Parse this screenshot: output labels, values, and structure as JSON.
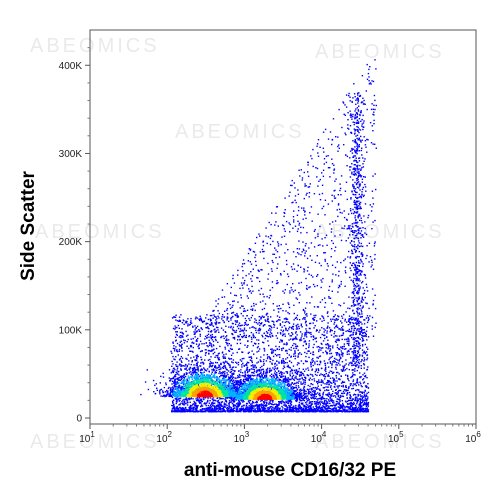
{
  "chart_data": {
    "type": "scatter",
    "subtype": "flow-cytometry-density-dot-plot",
    "title": "",
    "xlabel": "anti-mouse CD16/32 PE",
    "ylabel": "Side Scatter",
    "x_scale": "log",
    "xlim": [
      10,
      1000000
    ],
    "x_ticks": [
      {
        "value": 10,
        "base": "10",
        "exp": "1"
      },
      {
        "value": 100,
        "base": "10",
        "exp": "2"
      },
      {
        "value": 1000,
        "base": "10",
        "exp": "3"
      },
      {
        "value": 10000,
        "base": "10",
        "exp": "4"
      },
      {
        "value": 100000,
        "base": "10",
        "exp": "5"
      },
      {
        "value": 1000000,
        "base": "10",
        "exp": "6"
      }
    ],
    "y_scale": "linear",
    "ylim": [
      0,
      440000
    ],
    "y_ticks": [
      {
        "value": 0,
        "label": "0"
      },
      {
        "value": 100000,
        "label": "100K"
      },
      {
        "value": 200000,
        "label": "200K"
      },
      {
        "value": 300000,
        "label": "300K"
      },
      {
        "value": 400000,
        "label": "400K"
      }
    ],
    "populations": [
      {
        "center_x": 300,
        "center_y": 25000,
        "peak_density": "high"
      },
      {
        "center_x": 1800,
        "center_y": 22000,
        "peak_density": "highest"
      }
    ],
    "density_colors": [
      "#0000ff",
      "#00b4ff",
      "#00e6a0",
      "#f0f000",
      "#ffa000",
      "#ff0000"
    ],
    "grid": false,
    "legend": "none"
  },
  "watermark": {
    "text": "ABEOMICS"
  }
}
